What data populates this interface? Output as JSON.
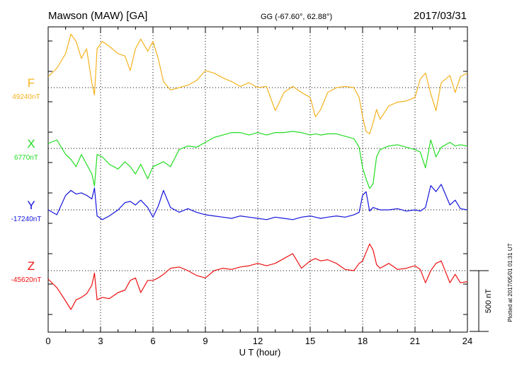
{
  "header": {
    "station": "Mawson (MAW)  [GA]",
    "coords": "GG (-67.60°,  62.88°)",
    "date": "2017/03/31"
  },
  "side_note": "Plotted at 2017/05/01 01:31  UT",
  "chart_data": {
    "type": "line",
    "title": "Mawson (MAW)  [GA]",
    "xlabel": "U T (hour)",
    "ylabel": "",
    "xlim": [
      0,
      24
    ],
    "x_ticks": [
      0,
      3,
      6,
      9,
      12,
      15,
      18,
      21,
      24
    ],
    "x_tick_labels": [
      "0",
      "3",
      "6",
      "9",
      "12",
      "15",
      "18",
      "21",
      "24"
    ],
    "grid": "dotted vertical every 3 h; dotted baseline per component",
    "scale_bar": {
      "label": "500 nT",
      "value_nT": 500
    },
    "series": [
      {
        "name": "F",
        "baseline_label": "49240nT",
        "baseline_nT": 49240,
        "color": "#f5b21e",
        "x": [
          0,
          0.5,
          1,
          1.3,
          1.6,
          1.9,
          2.2,
          2.5,
          2.65,
          2.8,
          3.1,
          3.5,
          4,
          4.4,
          4.7,
          5,
          5.3,
          5.7,
          6,
          6.3,
          6.6,
          7,
          7.5,
          8,
          8.5,
          9,
          9.5,
          10,
          10.5,
          11,
          11.5,
          12,
          12.5,
          13,
          13.5,
          14,
          14.5,
          15,
          15.3,
          15.6,
          16,
          16.5,
          17,
          17.5,
          17.8,
          18,
          18.2,
          18.4,
          18.6,
          18.8,
          19,
          19.5,
          20,
          20.5,
          21,
          21.3,
          21.6,
          21.9,
          22.2,
          22.5,
          23,
          23.3,
          23.6,
          24
        ],
        "y": [
          49330,
          49400,
          49520,
          49680,
          49620,
          49480,
          49560,
          49280,
          49180,
          49560,
          49620,
          49580,
          49520,
          49500,
          49380,
          49560,
          49640,
          49540,
          49620,
          49480,
          49290,
          49220,
          49240,
          49260,
          49300,
          49380,
          49360,
          49320,
          49290,
          49250,
          49280,
          49240,
          49250,
          49050,
          49200,
          49250,
          49200,
          49160,
          49000,
          49060,
          49200,
          49240,
          49250,
          49240,
          49160,
          49000,
          48880,
          48860,
          48950,
          49060,
          48980,
          49090,
          49120,
          49130,
          49160,
          49310,
          49360,
          49190,
          49050,
          49280,
          49340,
          49200,
          49330,
          49360
        ]
      },
      {
        "name": "X",
        "baseline_label": "6770nT",
        "baseline_nT": 6770,
        "color": "#22dd22",
        "x": [
          0,
          0.5,
          1,
          1.3,
          1.6,
          1.9,
          2.2,
          2.5,
          2.65,
          2.8,
          3.1,
          3.5,
          4,
          4.4,
          4.7,
          5,
          5.3,
          5.7,
          6,
          6.3,
          6.6,
          7,
          7.5,
          8,
          8.5,
          9,
          9.5,
          10,
          10.5,
          11,
          11.5,
          12,
          12.5,
          13,
          13.5,
          14,
          14.5,
          15,
          15.3,
          15.6,
          16,
          16.5,
          17,
          17.5,
          17.8,
          18,
          18.2,
          18.4,
          18.6,
          18.8,
          19,
          19.5,
          20,
          20.5,
          21,
          21.3,
          21.6,
          21.9,
          22.2,
          22.5,
          23,
          23.3,
          23.6,
          24
        ],
        "y": [
          6810,
          6840,
          6720,
          6680,
          6620,
          6720,
          6640,
          6560,
          6460,
          6720,
          6700,
          6640,
          6600,
          6660,
          6620,
          6560,
          6640,
          6520,
          6620,
          6640,
          6660,
          6620,
          6760,
          6790,
          6780,
          6820,
          6860,
          6880,
          6900,
          6900,
          6880,
          6900,
          6880,
          6900,
          6900,
          6910,
          6900,
          6880,
          6890,
          6880,
          6890,
          6890,
          6870,
          6850,
          6780,
          6610,
          6520,
          6440,
          6480,
          6700,
          6760,
          6790,
          6800,
          6780,
          6760,
          6740,
          6610,
          6840,
          6700,
          6780,
          6820,
          6790,
          6800,
          6790
        ]
      },
      {
        "name": "Y",
        "baseline_label": "-17240nT",
        "baseline_nT": -17240,
        "color": "#1515dd",
        "x": [
          0,
          0.5,
          1,
          1.3,
          1.6,
          1.9,
          2.2,
          2.5,
          2.65,
          2.8,
          3.1,
          3.5,
          4,
          4.4,
          4.7,
          5,
          5.3,
          5.7,
          6,
          6.3,
          6.6,
          7,
          7.5,
          8,
          8.5,
          9,
          9.5,
          10,
          10.5,
          11,
          11.5,
          12,
          12.5,
          13,
          13.5,
          14,
          14.5,
          15,
          15.3,
          15.6,
          16,
          16.5,
          17,
          17.5,
          17.8,
          18,
          18.2,
          18.4,
          18.6,
          18.8,
          19,
          19.5,
          20,
          20.5,
          21,
          21.3,
          21.6,
          21.9,
          22.2,
          22.5,
          23,
          23.3,
          23.6,
          24
        ],
        "y": [
          -17240,
          -17280,
          -17120,
          -17080,
          -17110,
          -17100,
          -17120,
          -17150,
          -17060,
          -17290,
          -17320,
          -17290,
          -17240,
          -17180,
          -17170,
          -17200,
          -17160,
          -17220,
          -17300,
          -17210,
          -17080,
          -17220,
          -17260,
          -17230,
          -17260,
          -17280,
          -17290,
          -17300,
          -17310,
          -17290,
          -17300,
          -17310,
          -17320,
          -17300,
          -17310,
          -17320,
          -17300,
          -17290,
          -17300,
          -17310,
          -17300,
          -17290,
          -17300,
          -17280,
          -17260,
          -17120,
          -17090,
          -17250,
          -17220,
          -17230,
          -17240,
          -17240,
          -17230,
          -17250,
          -17240,
          -17250,
          -17220,
          -17040,
          -17090,
          -17030,
          -17200,
          -17160,
          -17230,
          -17240
        ]
      },
      {
        "name": "Z",
        "baseline_label": "-45620nT",
        "baseline_nT": -45620,
        "color": "#ee1111",
        "x": [
          0,
          0.5,
          1,
          1.3,
          1.6,
          1.9,
          2.2,
          2.5,
          2.65,
          2.8,
          3.1,
          3.5,
          4,
          4.4,
          4.7,
          5,
          5.3,
          5.7,
          6,
          6.3,
          6.6,
          7,
          7.5,
          8,
          8.5,
          9,
          9.5,
          10,
          10.5,
          11,
          11.5,
          12,
          12.5,
          13,
          13.5,
          14,
          14.5,
          15,
          15.3,
          15.6,
          16,
          16.5,
          17,
          17.5,
          17.8,
          18,
          18.2,
          18.4,
          18.6,
          18.8,
          19,
          19.5,
          20,
          20.5,
          21,
          21.3,
          21.6,
          21.9,
          22.2,
          22.5,
          23,
          23.3,
          23.6,
          24
        ],
        "y": [
          -45690,
          -45760,
          -45870,
          -45940,
          -45860,
          -45840,
          -45810,
          -45740,
          -45640,
          -45860,
          -45840,
          -45850,
          -45800,
          -45780,
          -45700,
          -45680,
          -45800,
          -45700,
          -45700,
          -45680,
          -45650,
          -45600,
          -45590,
          -45620,
          -45660,
          -45680,
          -45620,
          -45600,
          -45610,
          -45590,
          -45580,
          -45560,
          -45580,
          -45560,
          -45520,
          -45480,
          -45600,
          -45540,
          -45520,
          -45540,
          -45530,
          -45560,
          -45610,
          -45620,
          -45560,
          -45540,
          -45470,
          -45400,
          -45450,
          -45570,
          -45600,
          -45560,
          -45610,
          -45600,
          -45580,
          -45610,
          -45720,
          -45620,
          -45560,
          -45540,
          -45720,
          -45650,
          -45720,
          -45710
        ]
      }
    ]
  }
}
